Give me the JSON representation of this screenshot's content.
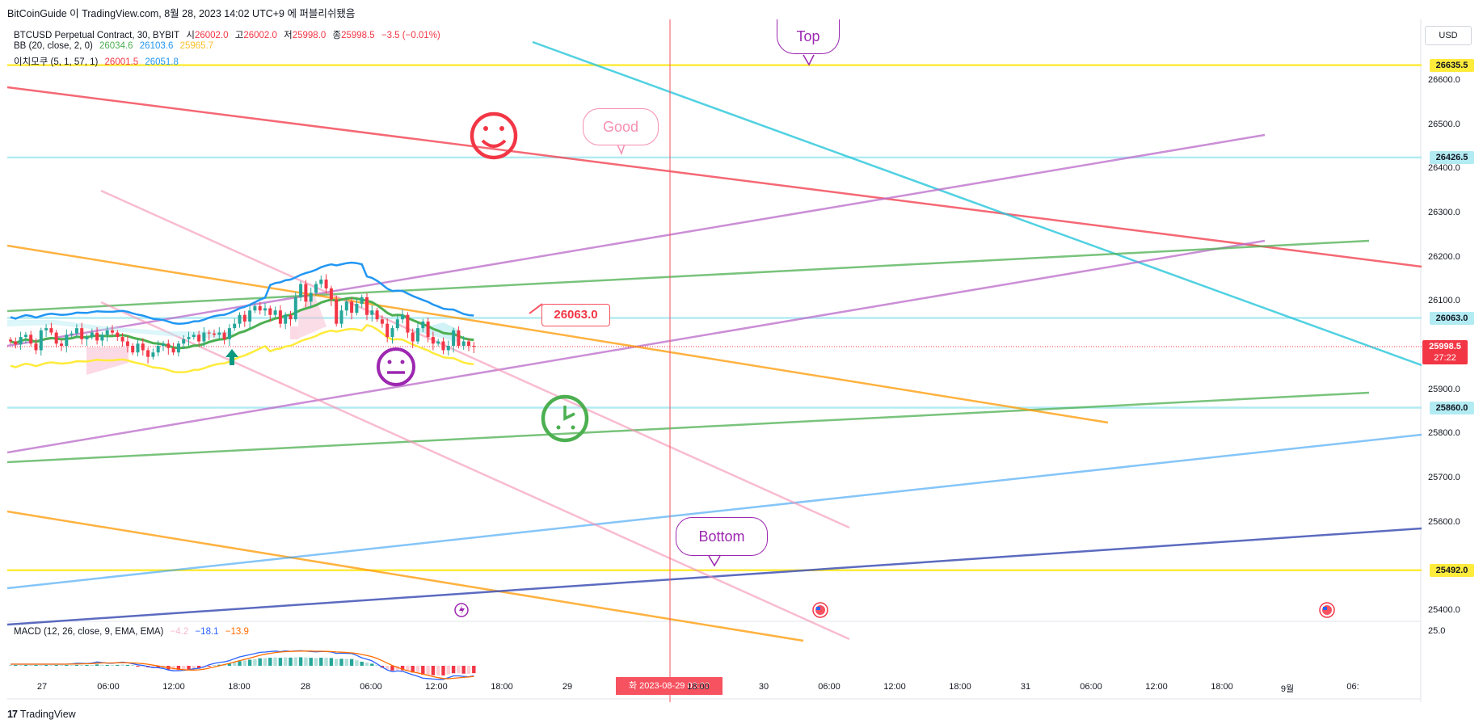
{
  "header": {
    "text": "BitCoinGuide 이 TradingView.com, 8월 28, 2023 14:02 UTC+9 에 퍼블리쉬됐음"
  },
  "legend": {
    "symbol": "BTCUSD Perpetual Contract, 30, BYBIT",
    "ohlc": [
      {
        "label": "시",
        "value": "26002.0"
      },
      {
        "label": "고",
        "value": "26002.0"
      },
      {
        "label": "저",
        "value": "25998.0"
      },
      {
        "label": "종",
        "value": "25998.5"
      }
    ],
    "change": "−3.5 (−0.01%)",
    "bb": {
      "name": "BB (20, close, 2, 0)",
      "basis": "26034.6",
      "upper": "26103.6",
      "lower": "25965.7"
    },
    "ichimoku": {
      "name": "이치모쿠 (5, 1, 57, 1)",
      "v1": "26001.5",
      "v2": "26051.8"
    }
  },
  "currency": "USD",
  "colors": {
    "up": "#26a69a",
    "down": "#f23645",
    "bb_basis": "#4caf50",
    "bb_upper": "#2196f3",
    "bb_lower": "#ffeb3b",
    "accent_red": "#f7525f",
    "purple": "#9c27b0"
  },
  "price_axis": {
    "ticks": [
      "26600.0",
      "26500.0",
      "26400.0",
      "26300.0",
      "26200.0",
      "26100.0",
      "25900.0",
      "25800.0",
      "25700.0",
      "25600.0",
      "25400.0"
    ],
    "highlight_tags": [
      {
        "value": "26635.5",
        "color": "#ffeb3b"
      },
      {
        "value": "26426.5",
        "color": "#b2ebf2"
      },
      {
        "value": "26063.0",
        "color": "#b2ebf2"
      },
      {
        "value": "25860.0",
        "color": "#b2ebf2"
      },
      {
        "value": "25492.0",
        "color": "#ffeb3b"
      }
    ],
    "current_price": "25998.5",
    "countdown": "27:22"
  },
  "time_axis": {
    "labels": [
      "27",
      "06:00",
      "12:00",
      "18:00",
      "28",
      "06:00",
      "12:00",
      "18:00",
      "29",
      "",
      "18:00",
      "30",
      "06:00",
      "12:00",
      "18:00",
      "31",
      "06:00",
      "12:00",
      "18:00",
      "9월",
      "06:"
    ],
    "crosshair_label": "화 2023-08-29   09:00"
  },
  "annotations": {
    "top_bubble": "Top",
    "good_bubble": "Good",
    "bottom_bubble": "Bottom",
    "price_tag": "26063.0"
  },
  "macd": {
    "name": "MACD (12, 26, close, 9, EMA, EMA)",
    "histogram": "−4.2",
    "macd": "−18.1",
    "signal": "−13.9",
    "axis_value": "25.0"
  },
  "chart_data": {
    "type": "candlestick",
    "symbol": "BTCUSD Perpetual Contract",
    "interval": "30",
    "ylim": [
      25350,
      26680
    ],
    "horizontal_levels": [
      {
        "price": 26635.5,
        "color": "#ffeb3b"
      },
      {
        "price": 26426.5,
        "color": "#b2ebf2"
      },
      {
        "price": 26063.0,
        "color": "#b2ebf2"
      },
      {
        "price": 25860.0,
        "color": "#b2ebf2"
      },
      {
        "price": 25492.0,
        "color": "#ffeb3b"
      }
    ],
    "last_price": 25998.5,
    "closes": [
      26010,
      26003,
      26020,
      26025,
      26005,
      25990,
      26035,
      26040,
      26030,
      26005,
      26000,
      26025,
      26028,
      26040,
      26015,
      26020,
      26030,
      26012,
      26025,
      26035,
      26030,
      26020,
      26010,
      26000,
      25985,
      26005,
      25990,
      25975,
      25985,
      26000,
      26005,
      25995,
      25985,
      26005,
      26015,
      26020,
      26025,
      26010,
      26030,
      26028,
      26025,
      26030,
      26015,
      26040,
      26050,
      26070,
      26055,
      26080,
      26090,
      26080,
      26085,
      26070,
      26080,
      26050,
      26070,
      26060,
      26110,
      26140,
      26100,
      26120,
      26140,
      26150,
      26130,
      26105,
      26050,
      26080,
      26100,
      26075,
      26095,
      26110,
      26070,
      26080,
      26060,
      26050,
      26020,
      26040,
      26060,
      26070,
      26030,
      26010,
      26040,
      26055,
      26020,
      26005,
      26010,
      25990,
      26000,
      26035,
      26000,
      26010,
      26000,
      25998.5
    ]
  }
}
